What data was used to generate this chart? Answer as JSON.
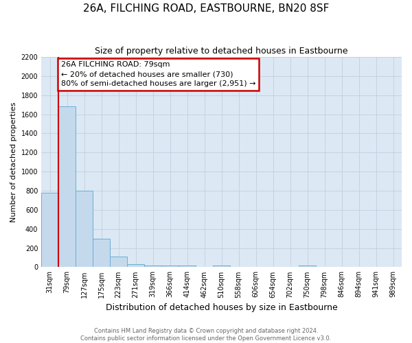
{
  "title": "26A, FILCHING ROAD, EASTBOURNE, BN20 8SF",
  "subtitle": "Size of property relative to detached houses in Eastbourne",
  "xlabel": "Distribution of detached houses by size in Eastbourne",
  "ylabel": "Number of detached properties",
  "bin_labels": [
    "31sqm",
    "79sqm",
    "127sqm",
    "175sqm",
    "223sqm",
    "271sqm",
    "319sqm",
    "366sqm",
    "414sqm",
    "462sqm",
    "510sqm",
    "558sqm",
    "606sqm",
    "654sqm",
    "702sqm",
    "750sqm",
    "798sqm",
    "846sqm",
    "894sqm",
    "941sqm",
    "989sqm"
  ],
  "bar_heights": [
    780,
    1680,
    800,
    300,
    110,
    35,
    20,
    20,
    15,
    0,
    15,
    0,
    0,
    0,
    0,
    15,
    0,
    0,
    0,
    0,
    0
  ],
  "bar_color": "#c5d9ed",
  "bar_edge_color": "#6aaed6",
  "annotation_title": "26A FILCHING ROAD: 79sqm",
  "annotation_line1": "← 20% of detached houses are smaller (730)",
  "annotation_line2": "80% of semi-detached houses are larger (2,951) →",
  "annotation_box_color": "#ffffff",
  "annotation_box_edge_color": "#cc0000",
  "vline_color": "#cc0000",
  "ylim": [
    0,
    2200
  ],
  "yticks": [
    0,
    200,
    400,
    600,
    800,
    1000,
    1200,
    1400,
    1600,
    1800,
    2000,
    2200
  ],
  "footer_line1": "Contains HM Land Registry data © Crown copyright and database right 2024.",
  "footer_line2": "Contains public sector information licensed under the Open Government Licence v3.0.",
  "grid_color": "#c0d0e0",
  "background_color": "#dce8f4",
  "fig_bg": "#ffffff",
  "title_fontsize": 11,
  "subtitle_fontsize": 9,
  "ylabel_fontsize": 8,
  "xlabel_fontsize": 9,
  "tick_fontsize": 7,
  "annotation_fontsize": 8,
  "footer_fontsize": 6
}
